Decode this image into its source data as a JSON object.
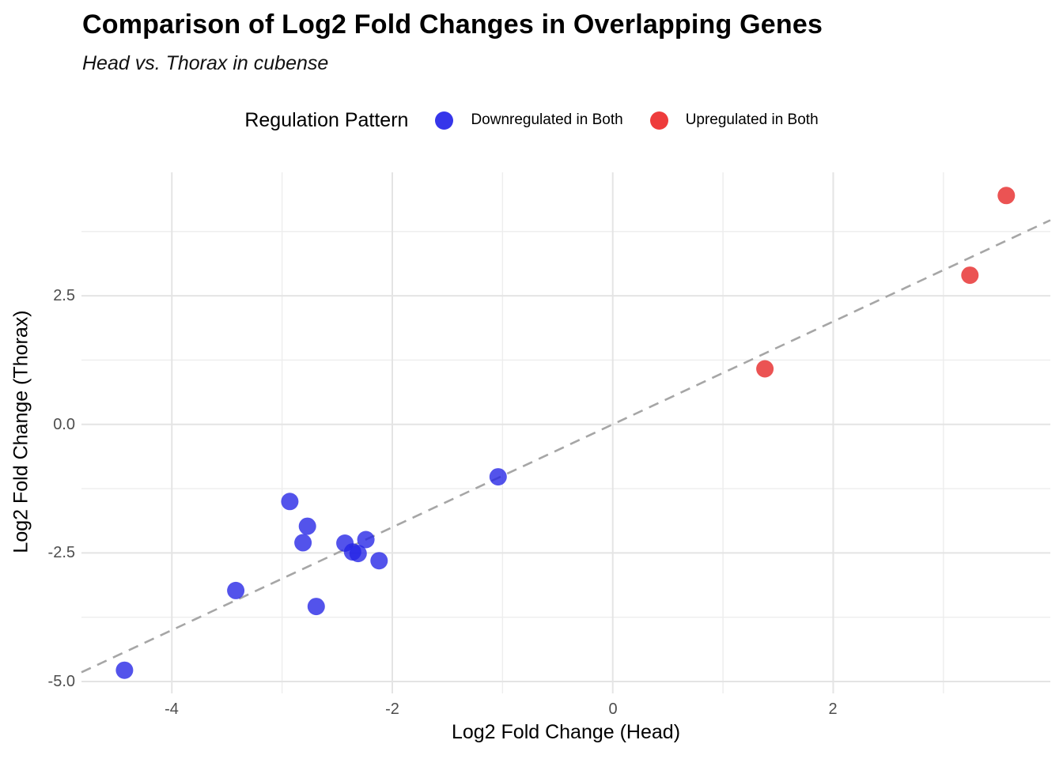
{
  "header": {
    "title": "Comparison of Log2 Fold Changes in Overlapping Genes",
    "subtitle": "Head vs. Thorax in cubense"
  },
  "legend": {
    "title": "Regulation Pattern",
    "items": [
      {
        "label": "Downregulated in Both",
        "color": "#2222E6",
        "marker": "circle-icon"
      },
      {
        "label": "Upregulated in Both",
        "color": "#E62222",
        "marker": "circle-icon"
      }
    ]
  },
  "colors": {
    "background": "#ffffff",
    "grid_major": "#e4e4e4",
    "grid_minor": "#ededed",
    "reference_line": "#a6a6a6",
    "tick_text": "#4d4d4d",
    "blue_point": "#2222E6",
    "red_point": "#E62222"
  },
  "chart_data": {
    "type": "scatter",
    "title": "Comparison of Log2 Fold Changes in Overlapping Genes",
    "subtitle": "Head vs. Thorax in cubense",
    "xlabel": "Log2 Fold Change (Head)",
    "ylabel": "Log2 Fold Change (Thorax)",
    "xlim": [
      -4.82,
      3.97
    ],
    "ylim": [
      -5.23,
      4.9
    ],
    "grid": true,
    "legend_position": "top-center",
    "x_ticks": {
      "values": [
        -4,
        -2,
        0,
        2
      ],
      "labels": [
        "-4",
        "-2",
        "0",
        "2"
      ],
      "minor": [
        -3,
        -1,
        1,
        3
      ]
    },
    "y_ticks": {
      "values": [
        2.5,
        0,
        -2.5,
        -5
      ],
      "labels": [
        "2.5",
        "0.0",
        "-2.5",
        "-5.0"
      ],
      "minor": [
        3.75,
        1.25,
        -1.25,
        -3.75
      ]
    },
    "reference_line": {
      "type": "identity",
      "equation": "y = x",
      "style": "dashed",
      "color": "#a6a6a6"
    },
    "series": [
      {
        "name": "Downregulated in Both",
        "color": "#2222E6",
        "points": [
          [
            -4.43,
            -4.78
          ],
          [
            -3.42,
            -3.23
          ],
          [
            -2.93,
            -1.5
          ],
          [
            -2.77,
            -1.98
          ],
          [
            -2.81,
            -2.3
          ],
          [
            -2.69,
            -3.54
          ],
          [
            -2.43,
            -2.31
          ],
          [
            -2.36,
            -2.48
          ],
          [
            -2.31,
            -2.51
          ],
          [
            -2.24,
            -2.24
          ],
          [
            -2.12,
            -2.65
          ],
          [
            -1.04,
            -1.02
          ]
        ]
      },
      {
        "name": "Upregulated in Both",
        "color": "#E62222",
        "points": [
          [
            1.38,
            1.08
          ],
          [
            3.24,
            2.9
          ],
          [
            3.57,
            4.45
          ]
        ]
      }
    ]
  }
}
